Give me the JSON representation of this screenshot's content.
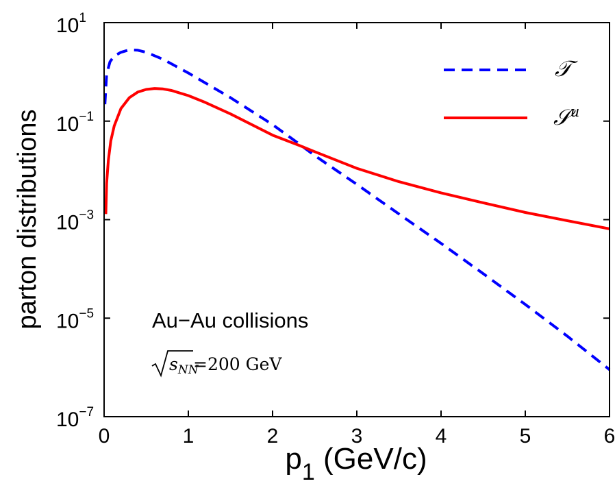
{
  "chart_data": {
    "type": "line",
    "xlabel": "p",
    "xlabel_sub": "1",
    "xlabel_unit": " (GeV/c)",
    "ylabel": "parton distributions",
    "xlim": [
      0,
      6
    ],
    "ylim": [
      1e-07,
      10
    ],
    "yscale": "log",
    "xticks": [
      0,
      1,
      2,
      3,
      4,
      5,
      6
    ],
    "yticks": [
      {
        "value": 10,
        "base": "10",
        "exp": "1"
      },
      {
        "value": 0.1,
        "base": "10",
        "exp": "−1"
      },
      {
        "value": 0.001,
        "base": "10",
        "exp": "−3"
      },
      {
        "value": 1e-05,
        "base": "10",
        "exp": "−5"
      },
      {
        "value": 1e-07,
        "base": "10",
        "exp": "−7"
      }
    ],
    "grid": false,
    "legend_position": "top-right",
    "annotations": {
      "line1": "Au−Au collisions",
      "line2_rad": "s",
      "line2_sub": "NN",
      "line2_rest": "=200 GeV"
    },
    "series": [
      {
        "name": "𝒯",
        "color": "#0000ff",
        "style": "dashed",
        "x": [
          0.01,
          0.03,
          0.07,
          0.12,
          0.2,
          0.3,
          0.4,
          0.5,
          0.7,
          1.0,
          1.5,
          2.0,
          2.3,
          2.5,
          3.0,
          3.5,
          4.0,
          4.5,
          5.0,
          5.5,
          6.0
        ],
        "y": [
          0.22,
          0.9,
          1.6,
          2.1,
          2.5,
          2.8,
          2.75,
          2.5,
          1.8,
          0.95,
          0.3,
          0.085,
          0.036,
          0.02,
          0.0052,
          0.0013,
          0.00033,
          8e-05,
          1.9e-05,
          4.3e-06,
          9e-07
        ]
      },
      {
        "name": "𝒮",
        "name_sup": "u",
        "color": "#ff0000",
        "style": "solid",
        "x": [
          0.02,
          0.03,
          0.05,
          0.08,
          0.12,
          0.2,
          0.3,
          0.4,
          0.5,
          0.6,
          0.7,
          0.8,
          1.0,
          1.2,
          1.5,
          2.0,
          2.3,
          2.5,
          3.0,
          3.5,
          4.0,
          4.5,
          5.0,
          5.5,
          6.0
        ],
        "y": [
          0.0013,
          0.0055,
          0.016,
          0.04,
          0.08,
          0.18,
          0.3,
          0.39,
          0.44,
          0.46,
          0.45,
          0.42,
          0.33,
          0.24,
          0.14,
          0.052,
          0.033,
          0.024,
          0.011,
          0.0059,
          0.0035,
          0.0022,
          0.0014,
          0.00095,
          0.00065
        ]
      }
    ]
  }
}
